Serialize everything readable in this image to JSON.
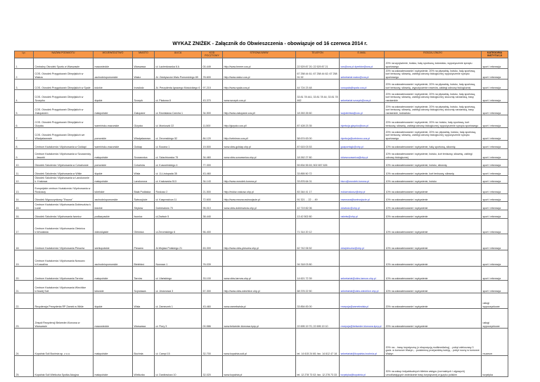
{
  "title": "WYKAZ  ZNIŻEK  - Załącznik do Obwieszczenia - obowiązuje od 16 czerwca 2014 r.",
  "headers": [
    "Lp.",
    "NAZWA PODMIOTU",
    "WOJEWÓDZTWO",
    "MIASTO",
    "ULICA",
    "KOD POCZTOWY",
    "STRONA WWW",
    "TELEFON",
    "E-MAIL",
    "RODZAJ ZNIŻKI",
    "KATEGORIA INSTYTUCJI"
  ],
  "rows": [
    [
      "1.",
      "Centralny Ośrodek Sportu w Warszawie",
      "mazowieckie",
      "Warszawa",
      "ul. Łazienkowska 6 A",
      "00-449",
      "http://www.bmeer.cos.pl",
      "22 529 87 20; 22 529 87 21",
      "cos@cos.pl dyrektor@cos.pl",
      "20% na wyżywienie, boisko, halę sportową, lodowisko, wypożyczenie sprzętu sportowego",
      "sport i rekreacja"
    ],
    [
      "2.",
      "COS. Ośrodek Przygotowań Olimpijskich w Wałczu",
      "zachodniopomorskie",
      "Wałcz",
      "Al. Zdobywców Wału Pomorskiego 89",
      "78-600",
      "http://www.walcz.cos.pl",
      "67 258 44 61; 67 258 44 62; 67 258 91 92",
      "sekretariat.walcz@cos.pl",
      "20% na zakwaterowanie i wyżywienie, 20% na pływalnię, boisko, halę sportową, kort tenisowy, siłownię, zabiegi odnowy biologicznej, wypożyczenie sprzętu sportowego",
      "sport i rekreacja"
    ],
    [
      "3.",
      "COS. Ośrodek Przygotowań Olimpijskich w Spale",
      "łódzkie",
      "Inowłódz",
      "Al. Prezydenta Ignacego Mościckiego 6",
      "97-215",
      "http://www.spala.cos.pl",
      "44 724 23 48",
      "cosspala@spala.cos.pl",
      "20% na zakwaterowanie i wyżywienie, 20% na pływalnię, boisko, halę sportową, kort tenisowy, siłownię, wypożyczenie rowerów, zabiegi odnowy biologicznej",
      "sport i rekreacja"
    ],
    [
      "4.",
      "COS. Ośrodek Przygotowań Olimpijskich w Szczyrku",
      "śląskie",
      "Szczyrk",
      "ul. Plażowa 8",
      "43-370",
      "www.szczyrk.cos.pl",
      "33 81 78 441; 33 81 78 44; 33 81 78 462",
      "sekretariat.szczyrk@cos.pl",
      "20% na zakwaterowanie i wyżywienie, 20% na pływalnię, boisko, halę sportową, kort tenisowy, siłownię, zabiegi odnowy biologicznej, skocznię narciarską, trasy narciarskie",
      "sport i rekreacja"
    ],
    [
      "5.",
      "COS. Ośrodek Przygotowań Olimpijskich w Zakopanem",
      "małopolskie",
      "Zakopane",
      "ul. Bronisława Czecha 1",
      "34-500",
      "http://www.zakopane.cos.pl/",
      "18 263 26 60",
      "wojstenhka@cos.pl",
      "20% na zakwaterowanie i wyżywienie, 20% na pływalnię, boisko, halę sportową, kort tenisowy, siłownię, zabiegi odnowy biologicznej, skocznię narciarską, trasy narciarskie, lodowisko",
      "sport i rekreacja"
    ],
    [
      "6.",
      "COS. Ośrodek Przygotowań Olimpijskich w Giżycku",
      "warmińsko-mazurskie",
      "Giżycko",
      "ul. Moniuszki 22",
      "11-500",
      "http://gizycko.cos.pl/",
      "87 428 23 35",
      "dyrekcja.gizycko@cos.pl",
      "20% na zakwaterowanie i wyżywienie, 20% na: boisko, halę sportową, kort tenisowy, siłownię, zabiegi odnowy biologicznej, wypożyczenie sprzętu sportowego",
      "sport i rekreacja"
    ],
    [
      "7.",
      "COS. Ośrodek Przygotowań Olimpijskich we Władysławowie",
      "pomorskie",
      "Władysławowo",
      "ul. Żeromskiego 52",
      "84-120",
      "http://cetniewo.cos.pl/",
      "58 674 63 00",
      "dyrekcja@cetniewo.cos.pl",
      "20% na zakwaterowanie i wyżywienie, 20% na: pływalnię, boisko, halę sportową, kort tenisowy, siłownię, zabiegi odnowy biologicznej, wypożyczenie sprzętu sportowego",
      "sport i rekreacja"
    ],
    [
      "8.",
      "Centrum Kształcenia i Wychowania w Gołdapi",
      "warmińsko-mazurskie",
      "Gołdap",
      "ul. Boczna 1",
      "19-500",
      "www.ckiw-goldap.ohp.pl",
      "87 615 03 53",
      "goapomkgk@ohp.pl",
      "10% na zakwaterowanie i wyżywienie, halę sportową, siłownię",
      "sport i rekreacja"
    ],
    [
      "9.",
      "Centrum Kształcenia i Wychowania w Szczawnicy - Jaworki",
      "małopolskie",
      "Szczawnica",
      "ul. Szlachtowska 75",
      "34-460",
      "www.ckiw-szczawnica.ohp.pl",
      "18 262 27 80",
      "ckiwszczawnica@ohp.pl",
      "10% na zakwaterowanie i wyżywienie, boisko, kort tenisowy, siłownię, zabiegi odnowy biologicznej",
      "sport i rekreacja"
    ],
    [
      "10.",
      "Ośrodek Szkolenia i Wychowania w Człuchowie",
      "pomorskie",
      "Człuchów",
      "ul. Kusocińskiego 4",
      "77-300",
      "",
      "59 834 55 63; 502 657 626",
      "",
      "10% na zakwaterowanie i wyżywienie, boisko,  siłownię",
      "sport i rekreacja"
    ],
    [
      "11.",
      "Ośrodek Szkolenia i Wychowania w Wiśle",
      "śląskie",
      "Wisła",
      "ul. 11-Listopada 35",
      "43-460",
      "",
      "33 855 50 72",
      "",
      "10% na zakwaterowanie i wyżywienie, kort tenisowy,  siłownię",
      "sport i rekreacja"
    ],
    [
      "12.",
      "Ośrodek Szkolenia i Wychowania w Lanckoronie k. Krakowa",
      "małopolskie",
      "Lanckorona",
      "ul. Krakowska 513",
      "34-143",
      "http://www.osrodek-korona.pl",
      "33 876 64 01",
      "biuro@osrodek-korona.pl",
      "10% na zakwaterowanie i wyżywienie, boisko",
      "sport i rekreacja"
    ],
    [
      "13.",
      "Europejskie centrum Kształcenia i Wychowania w Roskoszy",
      "lubelskie",
      "Biała Podlaska",
      "Roskosz 2",
      "21-500",
      "http://eckiw-roskosz.ohp.pl",
      "83 344 41 17",
      "eckiwroskosz@ohp.pl",
      "10% na zakwaterowanie i wyżywienie",
      "sport i rekreacja"
    ],
    [
      "14.",
      "Ośrodek Wypoczynkowy \"Ewuna\"",
      "zachodniopomorskie",
      "Świnoujście",
      "ul. Kasprowicza 11",
      "72-600",
      "http://www.ewuna.swinoujscie.pl",
      "91 321 ... 22 ... 49",
      "owewuna@swinoujscie.pl",
      "10% na zakwaterowanie i wyżywienie",
      "sport i rekreacja"
    ],
    [
      "15.",
      "Centrum Kształcenia i Wychowania Dobieszków k. Łodzi",
      "łódzkie",
      "Stryków",
      "Dobieszków 70",
      "95-010",
      "www.ckiw-dobieszkow.ohp.pl",
      "42 719 82 06",
      "ckiwlodz@ohp.pl",
      "10% na zakwaterowanie i wyżywienie",
      "sport i rekreacja"
    ],
    [
      "16.",
      "Ośrodek Szkolenia i Wychowania Iwonicz",
      "podkarpackie",
      "Iwonicz",
      "ul.Zadwór 5",
      "38-440",
      "",
      "13 42 502 80",
      "osiwiw@ohp.pl",
      "10% na zakwaterowanie i wyżywienie",
      "sport i rekreacja"
    ],
    [
      "17.",
      "Centrum Kształcenia i Wychowania Oleśnica k.Wrocławia",
      "dolnośląskie",
      "Oleśnica",
      "ul.Żeromskiego 6",
      "56-400",
      "",
      "71 314 20 12",
      "",
      "10% na zakwaterowanie i wyżywienie",
      "sport i rekreacja"
    ],
    [
      "18.",
      "Centrum Kształcenia i Wychowania Pleszew",
      "wielkopolskie",
      "Pleszew",
      "Al.Wojska Polskiego 21",
      "63-300",
      "http://www.ckiw-pleszew.ohp.pl",
      "62 742 06 52",
      "ckiwpleszew@ohp.pl",
      "10% na zakwaterowanie i wyżywienie",
      "sport i rekreacja"
    ],
    [
      "19.",
      "Centrum Kształcenia i Wychowania Nowowo k.Koszalina",
      "zachodniopomorskie",
      "Bielebinó",
      "Nowowo 1",
      "76-039",
      "",
      "94 318 03 80",
      "",
      "10% na zakwaterowanie i wyżywienie",
      "sport i rekreacja"
    ],
    [
      "20.",
      "Centrum Kształcenia i Wychowania Tarnów",
      "małopolskie",
      "Tarnów",
      "ul. Ułańskiego",
      "33-100",
      "www.ckiw-tarnow.ohp.pl",
      "14 621 72 39",
      "sekretariat@ckiw-tarnow.ohp.pl",
      "10% na zakwaterowanie i wyżywienie",
      "sport i rekreacja"
    ],
    [
      "21.",
      "Centrum Kształcenia i Wychowania Wiechlice k.Nowej Soli",
      "lubuskie",
      "Szprotawa",
      "ul. Jesionowa 3",
      "67-300",
      "http://www.ckiw-wiechlice.ohp.pl",
      "68 376 22 50",
      "sekretariat@ckiw-wiechlice.ohp.pl",
      "10% na zakwaterowanie i wyżywienie",
      "sport i rekreacja"
    ],
    [
      "22.",
      "Rezydencja Prezydenta RP Zamek w Wiśle",
      "śląskie",
      "Wisła",
      "ul. Zameczek 1",
      "43-460",
      "www.zamekwisla.pl",
      "33 854 83 00",
      "recepcja@zamekwisla.pl",
      "20% na zakwaterowanie i wyżywienie",
      "usługi wypoczynkowe"
    ],
    [
      "23.",
      "Zespół Rezydencji Belweder-Klonowa w Warszawie",
      "mazowieckie",
      "Warszawa",
      "ul. Flory 3",
      "00-586",
      "www.belweder-klonowa.kprp.pl",
      "22 695 19 70; 22 695 19 10",
      "recepcja@belweder-klonowa.kprp.pl",
      "20% na zakwaterowanie i wyżywienie",
      "usługi wypoczynkowe"
    ],
    [
      "24.",
      "Kopalnia Soli Bochnia sp. z o.o.",
      "małopolskie",
      "Bochnia",
      "ul. Campi 15",
      "32-700",
      "www.kopalnia-soli.pl",
      "tel. 14 615 24 60; fax. 14 612 47 18",
      "sekretariat@kopalnia-bochnia.pl",
      "20% na: - trasę turystyczną (z ekspozycją multimedialną), - pobyt wieloczasy 3 godz. w komorze Ważyn, - podziemną przejażdżkę koleją, - pobyt nocny w komorze Ważyn",
      "muzeum"
    ],
    [
      "25.",
      "Kopalnia Soli Wieliczka Spółka Akcyjna",
      "małopolskie",
      "Wieliczka",
      "ul. Daniłowicza 10",
      "32-020",
      "www.kopalnia.pl",
      "tel. 12 278 73 02; fax. 12 278 73 33",
      "turystyka@kopalnia.pl",
      "30% na zakup indywidualnych biletów wstępu (normalnych i ulgowych) umożliwiających zwiedzanie trasy turystycznej w języku polskim",
      "turystyka"
    ]
  ]
}
